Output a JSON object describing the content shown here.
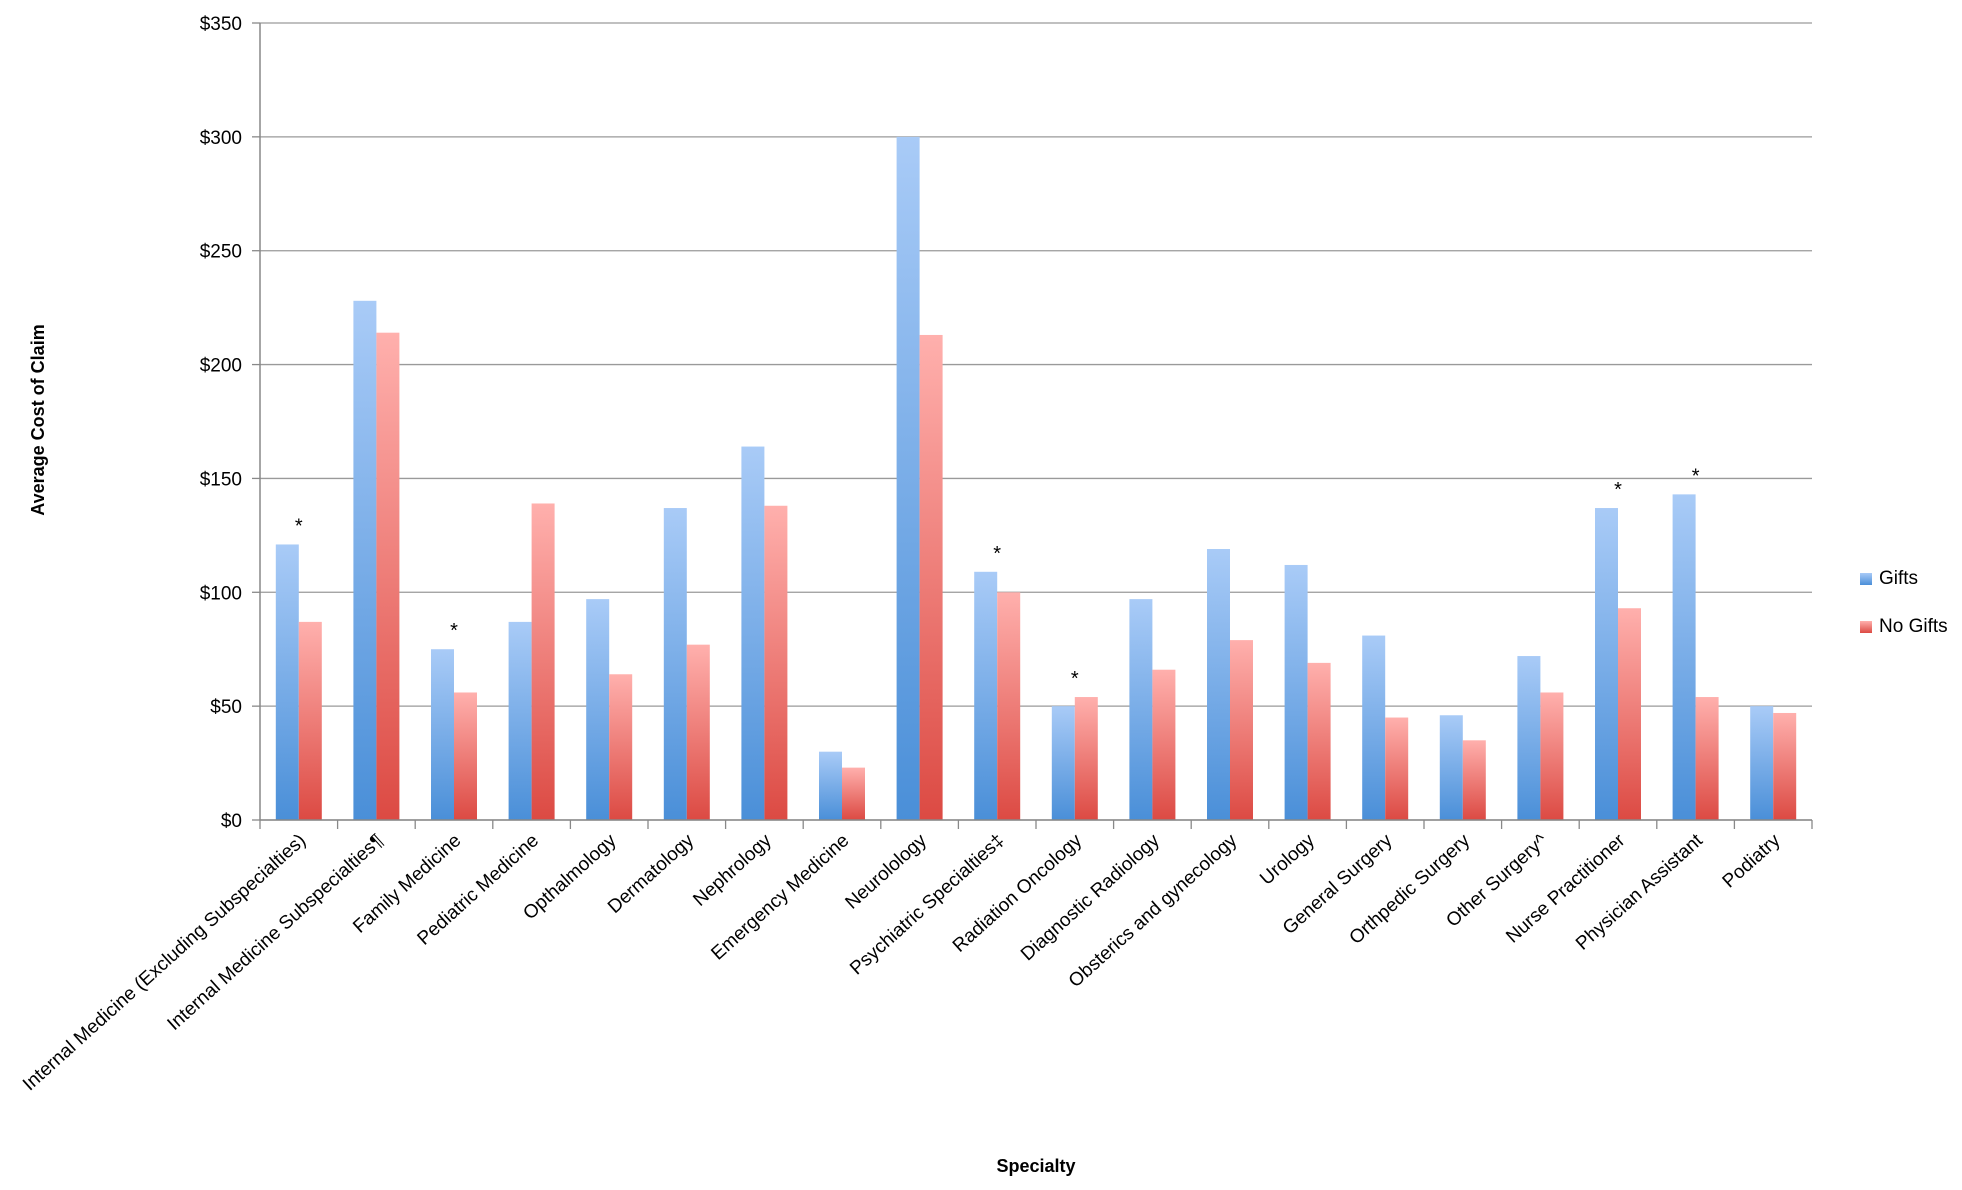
{
  "chart_data": {
    "type": "bar",
    "xlabel": "Specialty",
    "ylabel": "Average Cost of Claim",
    "ylim": [
      0,
      350
    ],
    "yticks": [
      0,
      50,
      100,
      150,
      200,
      250,
      300,
      350
    ],
    "ytick_labels": [
      "$0",
      "$50",
      "$100",
      "$150",
      "$200",
      "$250",
      "$300",
      "$350"
    ],
    "grid": true,
    "legend_position": "right",
    "categories": [
      "Internal Medicine (Excluding Subspecialties)",
      "Internal Medicine Subspecialties¶",
      "Family Medicine",
      "Pediatric Medicine",
      "Opthalmology",
      "Dermatology",
      "Nephrology",
      "Emergency Medicine",
      "Neurolology",
      "Psychiatric Specialties‡",
      "Radiation Oncology",
      "Diagnostic Radiology",
      "Obsterics and gynecology",
      "Urology",
      "General Surgery",
      "Orthpedic Surgery",
      "Other Surgery^",
      "Nurse Practitioner",
      "Physician Assistant",
      "Podiatry"
    ],
    "series": [
      {
        "name": "Gifts",
        "color": "#5b9bd5",
        "values": [
          121,
          228,
          75,
          87,
          97,
          137,
          164,
          30,
          300,
          109,
          50,
          97,
          119,
          112,
          81,
          46,
          72,
          137,
          143,
          50
        ]
      },
      {
        "name": "No Gifts",
        "color": "#e0534f",
        "values": [
          87,
          214,
          56,
          139,
          64,
          77,
          138,
          23,
          213,
          100,
          54,
          66,
          79,
          69,
          45,
          35,
          56,
          93,
          54,
          47
        ]
      }
    ],
    "annotations": [
      {
        "category": 0,
        "text": "*"
      },
      {
        "category": 2,
        "text": "*"
      },
      {
        "category": 9,
        "text": "*"
      },
      {
        "category": 10,
        "text": "*"
      },
      {
        "category": 17,
        "text": "*"
      },
      {
        "category": 18,
        "text": "*"
      }
    ]
  }
}
